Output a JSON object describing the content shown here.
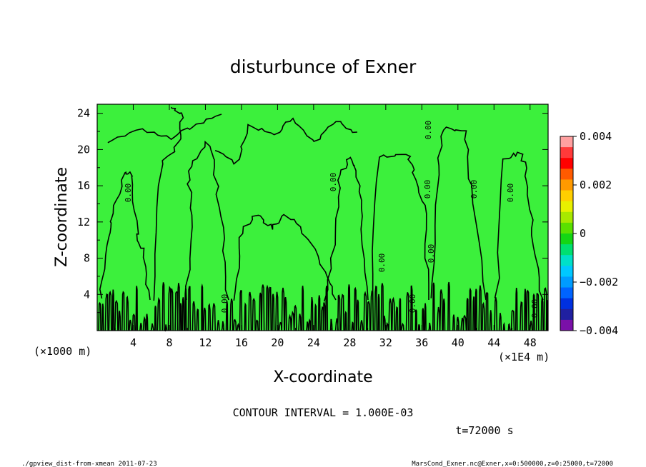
{
  "chart_data": {
    "type": "heatmap",
    "title": "disturbunce of Exner",
    "xlabel": "X-coordinate",
    "ylabel": "Z-coordinate",
    "x_unit_left": "(×1000 m)",
    "x_unit_right": "(×1E4 m)",
    "x_ticks": [
      "4",
      "8",
      "12",
      "16",
      "20",
      "24",
      "28",
      "32",
      "36",
      "40",
      "44",
      "48"
    ],
    "y_ticks": [
      "4",
      "8",
      "12",
      "16",
      "20",
      "24"
    ],
    "xlim": [
      0,
      50
    ],
    "ylim": [
      0,
      25
    ],
    "colorbar_ticks": [
      "0.004",
      "0.002",
      "0",
      "−0.002",
      "−0.004"
    ],
    "colorbar_range": [
      -0.004,
      0.004
    ],
    "colorbar_colors": [
      "#ffa0a0",
      "#ff3a3a",
      "#ff0000",
      "#ff5a00",
      "#ff9a00",
      "#ffcf00",
      "#e8f000",
      "#a8e800",
      "#5ae000",
      "#14d614",
      "#00e070",
      "#00e0c8",
      "#00c8ff",
      "#009cff",
      "#0064ff",
      "#0030e0",
      "#2020a0",
      "#7a10a8"
    ],
    "field_color": "#3cf03c",
    "contour_labels": [
      "0.00",
      "0.00",
      "0.00",
      "0.00",
      "0.00",
      "0.00",
      "0.00",
      "0.00",
      "0.00",
      "0.00",
      "0.00"
    ],
    "contour_interval_text": "CONTOUR INTERVAL = 1.000E-03",
    "time_text": "t=72000 s"
  },
  "footer": {
    "left": "./gpview_dist-from-xmean  2011-07-23",
    "right": "MarsCond_Exner.nc@Exner,x=0:500000,z=0:25000,t=72000"
  }
}
